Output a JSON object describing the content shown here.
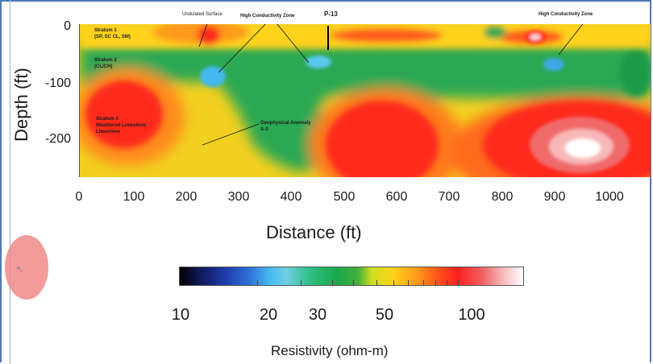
{
  "axes": {
    "ylabel": "Depth (ft)",
    "xlabel": "Distance (ft)",
    "yticks": [
      "0",
      "-100",
      "-200"
    ],
    "xticks": [
      "0",
      "100",
      "200",
      "300",
      "400",
      "500",
      "600",
      "700",
      "800",
      "900",
      "1000"
    ]
  },
  "annotations": {
    "stratum1": [
      "Stratum 1",
      "(SP, SC CL, SM)"
    ],
    "stratum2": [
      "Stratum 2",
      "(CL/CH)"
    ],
    "stratum3": [
      "Stratum 3",
      "Weathered Limestone",
      "Limestone"
    ],
    "undulated": "Undulated Surface",
    "hcz_left": "High Conductivity Zone",
    "hcz_right": "High Conductivity Zone",
    "p13": "P-13",
    "anomaly": [
      "Geophysical Anomaly",
      "A-2"
    ]
  },
  "colorbar": {
    "title": "Resistivity (ohm-m)",
    "labels": [
      "10",
      "20",
      "30",
      "50",
      "100"
    ]
  },
  "chart_data": {
    "type": "heatmap",
    "title": "",
    "xlabel": "Distance (ft)",
    "ylabel": "Depth (ft)",
    "xlim": [
      0,
      1070
    ],
    "ylim": [
      -265,
      5
    ],
    "xticks": [
      0,
      100,
      200,
      300,
      400,
      500,
      600,
      700,
      800,
      900,
      1000
    ],
    "yticks": [
      0,
      -100,
      -200
    ],
    "colorbar": {
      "label": "Resistivity (ohm-m)",
      "scale": "log",
      "range": [
        10,
        140
      ],
      "tick_labels": [
        10,
        20,
        30,
        50,
        100
      ]
    },
    "annotations": [
      {
        "text": "Stratum 1 (SP, SC CL, SM)",
        "x": 30,
        "y": -12
      },
      {
        "text": "Stratum 2 (CL/CH)",
        "x": 30,
        "y": -62
      },
      {
        "text": "Stratum 3 Weathered Limestone Limestone",
        "x": 30,
        "y": -170
      },
      {
        "text": "Undulated Surface",
        "x": 220,
        "y": -35
      },
      {
        "text": "High Conductivity Zone",
        "x": 260,
        "y": -80
      },
      {
        "text": "High Conductivity Zone",
        "x": 890,
        "y": -60
      },
      {
        "text": "P-13",
        "x": 460,
        "y": 0
      },
      {
        "text": "Geophysical Anomaly A-2",
        "x": 230,
        "y": -210
      }
    ]
  },
  "colors": {
    "frame": "#4f78b8",
    "green": "#24a84c",
    "red": "#ff2a1a",
    "yellow": "#ffd21a",
    "cursor": "#f08a8a"
  }
}
